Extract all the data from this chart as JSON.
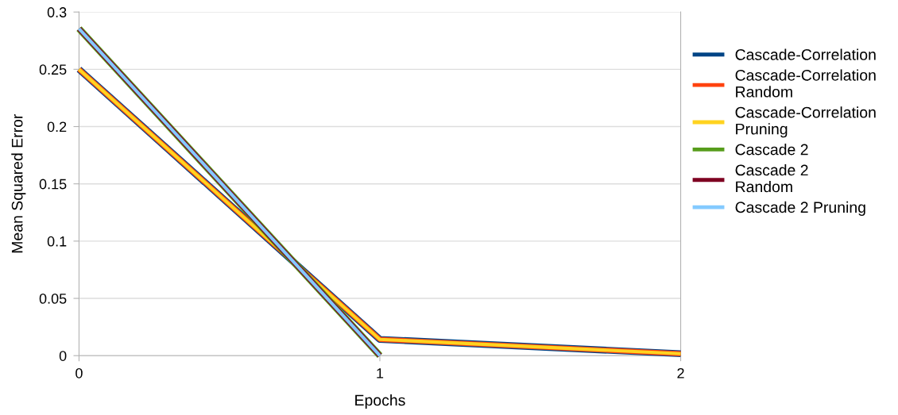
{
  "chart_data": {
    "type": "line",
    "xlabel": "Epochs",
    "ylabel": "Mean Squared Error",
    "x": [
      0,
      1,
      2
    ],
    "xlim": [
      0,
      2
    ],
    "xticks": [
      0,
      1,
      2
    ],
    "ylim": [
      0,
      0.3
    ],
    "yticks": [
      0,
      0.05,
      0.1,
      0.15,
      0.2,
      0.25,
      0.3
    ],
    "grid": "y",
    "legend": "right",
    "line_style": "solid",
    "marker": "none",
    "series": [
      {
        "name": "Cascade-Correlation",
        "color": "#004586",
        "values": [
          0.25,
          0.0142,
          0.0017
        ]
      },
      {
        "name": "Cascade-Correlation\nRandom",
        "color": "#ff420e",
        "values": [
          0.25,
          0.0142,
          0.0017
        ]
      },
      {
        "name": "Cascade-Correlation\nPruning",
        "color": "#ffd320",
        "values": [
          0.25,
          0.0142,
          0.0017
        ]
      },
      {
        "name": "Cascade 2",
        "color": "#579d1c",
        "values": [
          0.2855,
          0.0,
          null
        ]
      },
      {
        "name": "Cascade 2\nRandom",
        "color": "#7e0021",
        "values": [
          0.2855,
          0.0,
          null
        ]
      },
      {
        "name": "Cascade 2 Pruning",
        "color": "#83caff",
        "values": [
          0.2855,
          0.0,
          null
        ]
      }
    ]
  }
}
